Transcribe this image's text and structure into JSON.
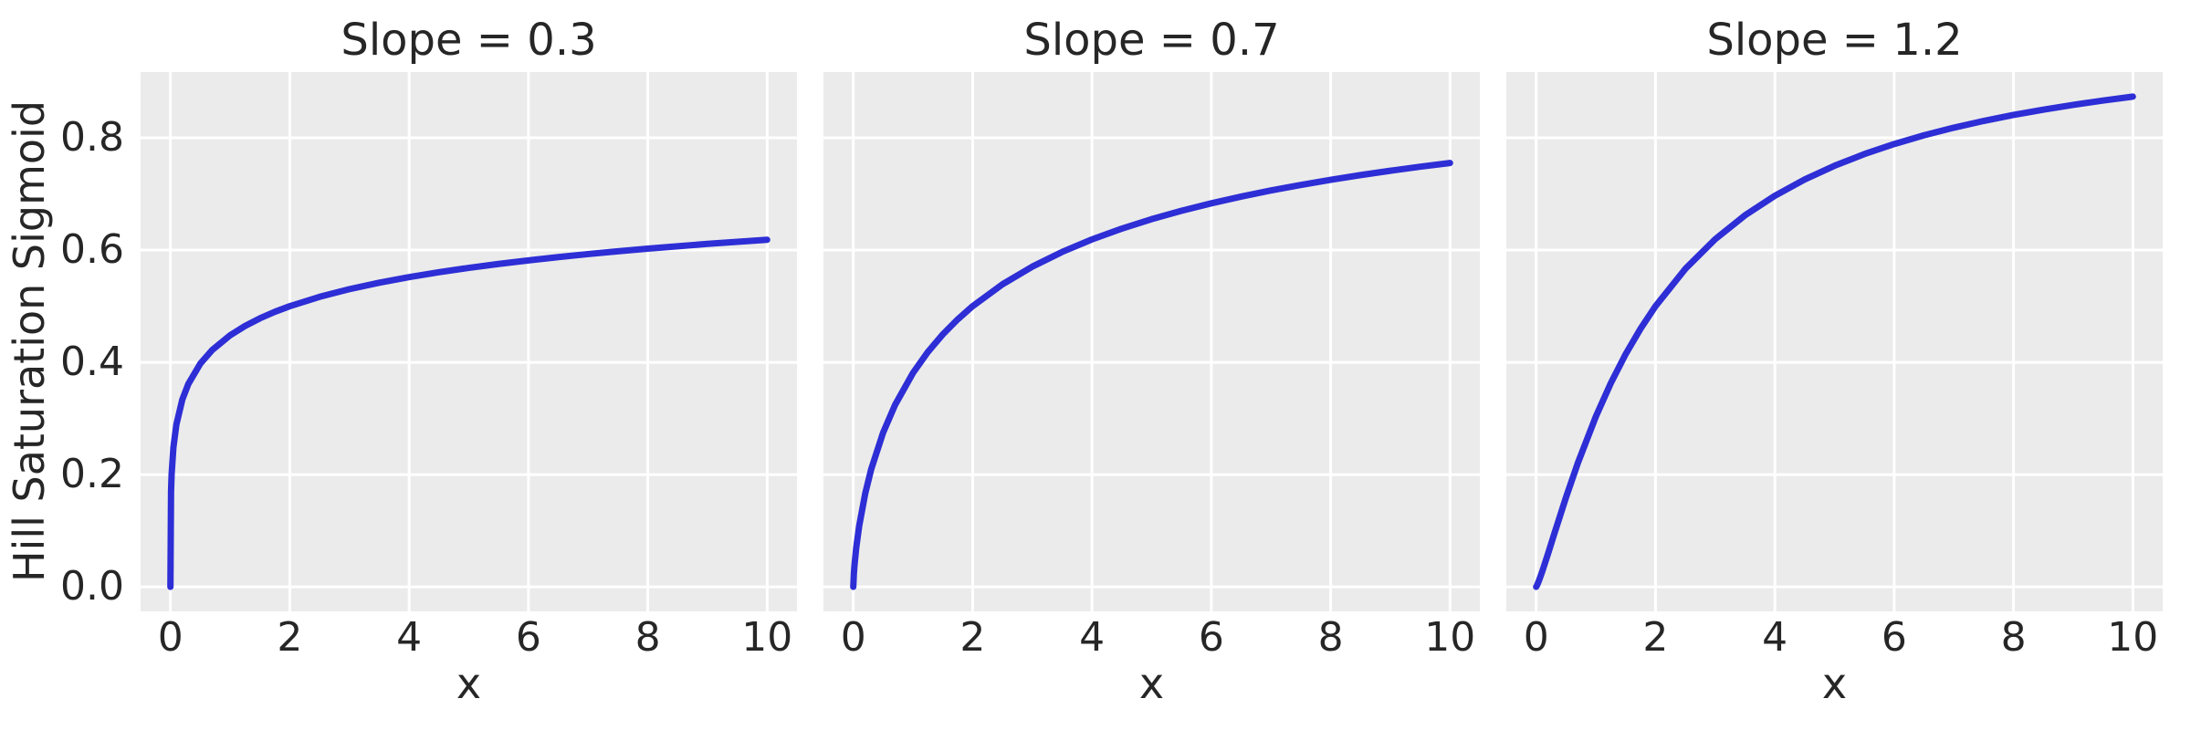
{
  "figure": {
    "background": "#ffffff",
    "axes_background": "#ebebeb",
    "grid_color": "#ffffff",
    "text_color": "#262626",
    "line_color": "#2e2ed6"
  },
  "chart_data": {
    "type": "line",
    "layout": "1x3 subplots, shared y axis, grid on, no legend",
    "xlabel": "x",
    "ylabel": "Hill Saturation Sigmoid",
    "xlim": [
      -0.5,
      10.5
    ],
    "ylim": [
      -0.0437,
      0.9171
    ],
    "xticks": [
      0,
      2,
      4,
      6,
      8,
      10
    ],
    "yticks": [
      0.0,
      0.2,
      0.4,
      0.6,
      0.8
    ],
    "x_tick_labels": [
      "0",
      "2",
      "4",
      "6",
      "8",
      "10"
    ],
    "y_tick_labels": [
      "0.0",
      "0.2",
      "0.4",
      "0.6",
      "0.8"
    ],
    "grid": true,
    "legend": false,
    "x": [
      0,
      0.01,
      0.02,
      0.05,
      0.1,
      0.2,
      0.3,
      0.5,
      0.7,
      1.0,
      1.25,
      1.5,
      1.75,
      2.0,
      2.5,
      3.0,
      3.5,
      4.0,
      4.5,
      5.0,
      5.5,
      6.0,
      6.5,
      7.0,
      7.5,
      8.0,
      8.5,
      9.0,
      9.5,
      10.0
    ],
    "subplots": [
      {
        "title": "Slope = 0.3",
        "slope": 0.3,
        "values": [
          0,
          0.1695,
          0.2008,
          0.2485,
          0.2893,
          0.3339,
          0.3614,
          0.3975,
          0.4219,
          0.4482,
          0.4648,
          0.4784,
          0.49,
          0.5,
          0.5167,
          0.5304,
          0.5418,
          0.5518,
          0.5605,
          0.5683,
          0.5753,
          0.5816,
          0.5875,
          0.5929,
          0.5979,
          0.6025,
          0.6068,
          0.611,
          0.6148,
          0.6184
        ]
      },
      {
        "title": "Slope = 0.7",
        "slope": 0.7,
        "values": [
          0,
          0.0239,
          0.0383,
          0.0703,
          0.1094,
          0.1663,
          0.2095,
          0.2748,
          0.3241,
          0.381,
          0.4185,
          0.4498,
          0.4766,
          0.5,
          0.539,
          0.5705,
          0.5967,
          0.619,
          0.6382,
          0.6551,
          0.67,
          0.6833,
          0.6953,
          0.7062,
          0.7161,
          0.7252,
          0.7336,
          0.7413,
          0.7485,
          0.7552
        ]
      },
      {
        "title": "Slope = 1.2",
        "slope": 1.2,
        "values": [
          0,
          0.0017,
          0.004,
          0.0118,
          0.0267,
          0.0593,
          0.0931,
          0.1593,
          0.221,
          0.3033,
          0.3626,
          0.4146,
          0.46,
          0.5,
          0.5665,
          0.6193,
          0.6619,
          0.6967,
          0.7258,
          0.7502,
          0.771,
          0.7889,
          0.8045,
          0.8181,
          0.8301,
          0.8407,
          0.8502,
          0.8587,
          0.8664,
          0.8734
        ]
      }
    ]
  }
}
